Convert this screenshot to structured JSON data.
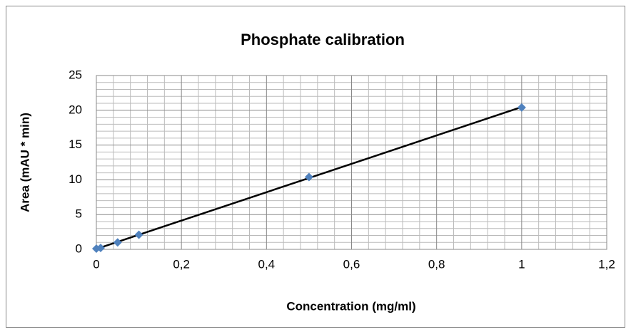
{
  "chart_data": {
    "type": "scatter",
    "title": "Phosphate calibration",
    "x_label": "Concentration (mg/ml)",
    "y_label": "Area (mAU * min)",
    "series": [
      {
        "color": "#4f81bd",
        "x": [
          0,
          0.01,
          0.05,
          0.1,
          0.5,
          1
        ],
        "values": [
          0.1,
          0.2,
          1.0,
          2.1,
          10.4,
          20.4
        ]
      }
    ],
    "trendline": "linear",
    "trendline_color": "#000000",
    "xlim": [
      0,
      1.2
    ],
    "xticks": [
      0,
      {
        "value": 0.2,
        "label": "0,2"
      },
      {
        "value": 0.4,
        "label": "0,4"
      },
      {
        "value": 0.6,
        "label": "0,6"
      },
      {
        "value": 0.8,
        "label": "0,8"
      },
      1,
      {
        "value": 1.2,
        "label": "1,2"
      }
    ],
    "ylim": [
      0,
      25
    ],
    "yticks": [
      0,
      5,
      10,
      15,
      20,
      25
    ],
    "grid": true,
    "minor_grid": true
  }
}
